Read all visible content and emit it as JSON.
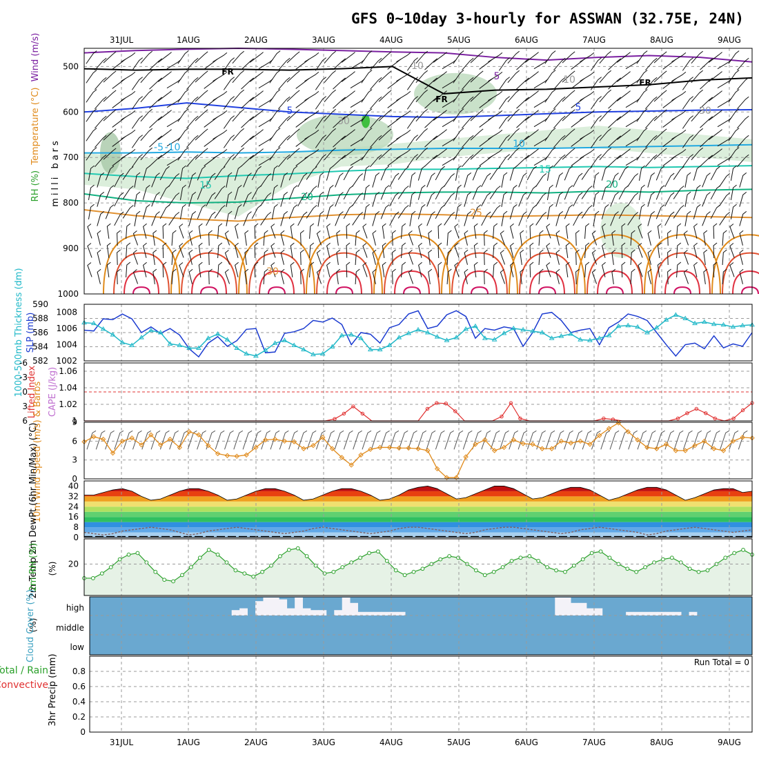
{
  "title": "GFS 0~10day 3-hourly for ASSWAN (32.75E, 24N)",
  "colors": {
    "wind": "#7a1fa0",
    "temperature": "#e03030",
    "rh": "#2aa02a",
    "rh_fill": "#cfe8cf",
    "thickness": "#20b8c8",
    "slp": "#1a3ad0",
    "lifted": "#e03030",
    "cape": "#c070d0",
    "wind10": "#e08a1a",
    "cloud": "#6aa8d0",
    "precip_total": "#2aa02a",
    "precip_conv": "#e03030"
  },
  "chart_data": [
    {
      "panel": "upper-air",
      "type": "contour",
      "dates": [
        "31JUL",
        "1AUG",
        "2AUG",
        "3AUG",
        "4AUG",
        "5AUG",
        "6AUG",
        "7AUG",
        "8AUG",
        "9AUG"
      ],
      "ylabel_parts": [
        "RH (%)",
        "Temperature (°C)",
        "Wind (m/s)"
      ],
      "ylabel2": "milli bars",
      "yticks": [
        "500",
        "600",
        "700",
        "800",
        "900",
        "1000"
      ],
      "ylim": [
        460,
        1000
      ],
      "freezing_label": "FR",
      "contour_labels": [
        "5",
        "5",
        "-5",
        "5",
        "-10",
        "10",
        "15",
        "15",
        "20",
        "20",
        "25",
        "30",
        "10",
        "30",
        "10",
        "30"
      ],
      "isotherms": [
        {
          "label": "-5",
          "p": [
            600,
            592,
            580,
            590,
            600,
            605,
            610,
            612,
            608,
            604,
            600,
            598,
            596,
            595
          ]
        },
        {
          "label": "-10",
          "p": [
            690,
            690,
            688,
            690,
            688,
            684,
            682,
            680,
            680,
            680,
            678,
            676,
            674,
            672
          ]
        },
        {
          "label": "15",
          "p": [
            735,
            742,
            746,
            740,
            736,
            730,
            726,
            726,
            724,
            722,
            720,
            722,
            720,
            718
          ]
        },
        {
          "label": "20",
          "p": [
            780,
            795,
            800,
            798,
            790,
            782,
            778,
            776,
            776,
            778,
            774,
            776,
            772,
            770
          ]
        },
        {
          "label": "25",
          "p": [
            815,
            828,
            835,
            840,
            832,
            826,
            824,
            826,
            830,
            828,
            826,
            828,
            830,
            832
          ]
        }
      ]
    },
    {
      "panel": "slp-thickness",
      "type": "line",
      "ylabel_left": "1000-500mb Thickness (dm)",
      "ylabel_right": "SLP (mb)",
      "yticks_left": [
        "590",
        "588",
        "586",
        "584",
        "582"
      ],
      "yticks_right": [
        "1008",
        "1006",
        "1004",
        "1002"
      ],
      "ylim_left": [
        582,
        590
      ],
      "ylim_right": [
        1002,
        1009
      ],
      "series": [
        {
          "name": "SLP (mb)",
          "axis": "right",
          "values": [
            1005.8,
            1005.7,
            1007.2,
            1007.1,
            1007.8,
            1007.2,
            1005.5,
            1006.2,
            1005.4,
            1006.0,
            1005.2,
            1003.5,
            1002.5,
            1004.2,
            1005.0,
            1003.8,
            1004.5,
            1005.9,
            1006.0,
            1003.0,
            1003.1,
            1005.4,
            1005.6,
            1006.0,
            1007.0,
            1006.8,
            1007.3,
            1006.5,
            1004.0,
            1005.5,
            1005.3,
            1004.2,
            1006.1,
            1006.5,
            1007.8,
            1008.2,
            1006.0,
            1006.3,
            1007.7,
            1008.2,
            1007.5,
            1004.8,
            1006.0,
            1005.8,
            1006.2,
            1006.0,
            1003.8,
            1005.5,
            1007.8,
            1008.0,
            1007.0,
            1005.5,
            1005.8,
            1006.0,
            1004.0,
            1006.1,
            1006.8,
            1007.8,
            1007.5,
            1007.0,
            1005.5,
            1004.0,
            1002.6,
            1004.0,
            1004.2,
            1003.5,
            1005.1,
            1003.6,
            1004.1,
            1003.8,
            1005.5
          ]
        },
        {
          "name": "Thickness (dm)",
          "axis": "left",
          "values": [
            587.4,
            587.3,
            586.5,
            585.7,
            584.6,
            584.2,
            585.3,
            586.3,
            586.0,
            584.4,
            584.2,
            583.8,
            583.8,
            585.2,
            585.8,
            585.0,
            583.8,
            583.0,
            582.7,
            583.5,
            584.5,
            584.9,
            584.2,
            583.6,
            582.9,
            583.0,
            584.0,
            585.6,
            585.7,
            585.2,
            583.6,
            583.6,
            584.2,
            585.3,
            585.9,
            586.4,
            586.0,
            585.4,
            584.9,
            585.3,
            586.5,
            586.9,
            585.2,
            585.0,
            585.9,
            586.6,
            586.4,
            586.2,
            586.0,
            585.2,
            585.5,
            585.8,
            585.0,
            584.9,
            585.2,
            585.6,
            586.9,
            587.0,
            586.8,
            586.0,
            586.7,
            587.8,
            588.5,
            588.0,
            587.3,
            587.5,
            587.2,
            587.1,
            586.8,
            587.0,
            587.1
          ]
        }
      ]
    },
    {
      "panel": "stability",
      "type": "line",
      "ylabel_left": "Lifted Index",
      "ylabel_right": "CAPE (J/kg)",
      "yticks_left": [
        "-6",
        "-3",
        "0",
        "3",
        "6"
      ],
      "yticks_right": [
        "1.06",
        "1.04",
        "1.02",
        "1"
      ],
      "ylim_left": [
        6,
        -6
      ],
      "ylim_right": [
        1.0,
        1.07
      ],
      "series": [
        {
          "name": "Lifted Index",
          "values": [
            6,
            6,
            6,
            6,
            6,
            6,
            6,
            6,
            6,
            6,
            6,
            6,
            6,
            6,
            6,
            6,
            6,
            6,
            6,
            6,
            6,
            6,
            6,
            6,
            6,
            6,
            6,
            5.6,
            4.5,
            3.0,
            4.5,
            6,
            6,
            6,
            6,
            6,
            6,
            3.5,
            2.3,
            2.4,
            4.0,
            6,
            6,
            6,
            6,
            5.1,
            2.3,
            5.5,
            6,
            6,
            6,
            6,
            6,
            6,
            6,
            6,
            5.5,
            5.7,
            6,
            6,
            6,
            6,
            6,
            6,
            5.5,
            4.4,
            3.5,
            4.4,
            5.5,
            6,
            5.5,
            3.8,
            2.3
          ]
        }
      ]
    },
    {
      "panel": "wind10m",
      "type": "line",
      "ylabel": "10m Wind Speed (m/s) & Barbs",
      "yticks": [
        "9",
        "6",
        "3",
        "0"
      ],
      "ylim": [
        0,
        9
      ],
      "series": [
        {
          "name": "Speed",
          "values": [
            5.9,
            6.7,
            6.3,
            4.1,
            6.0,
            6.5,
            5.4,
            7.0,
            5.4,
            6.3,
            5.0,
            7.5,
            7.0,
            5.3,
            4.0,
            3.7,
            3.6,
            3.8,
            5.0,
            6.2,
            6.3,
            6.0,
            5.9,
            4.8,
            5.3,
            6.6,
            4.8,
            3.4,
            2.2,
            3.8,
            4.7,
            5.0,
            5.0,
            4.9,
            4.9,
            4.8,
            4.5,
            1.6,
            0.2,
            0.2,
            3.5,
            5.5,
            6.2,
            4.5,
            5.0,
            6.2,
            5.6,
            5.5,
            4.8,
            4.8,
            6.0,
            5.7,
            6.0,
            5.5,
            6.9,
            8.0,
            8.9,
            7.5,
            6.2,
            5.0,
            4.8,
            5.5,
            4.5,
            4.5,
            5.3,
            6.0,
            4.8,
            4.5,
            6.0,
            6.6,
            6.5
          ]
        }
      ]
    },
    {
      "panel": "temp2m",
      "type": "area",
      "ylabel": "2m Temp 2m DewPt (6hr Min/Max) (°C)",
      "yticks": [
        "40",
        "32",
        "24",
        "16",
        "8",
        "0"
      ],
      "ylim": [
        0,
        44
      ],
      "series": [
        {
          "name": "2m Temp",
          "values": [
            33,
            33,
            35,
            37,
            38,
            36,
            32,
            29,
            30,
            33,
            36,
            38,
            38,
            36,
            33,
            29,
            30,
            33,
            36,
            38,
            38,
            36,
            33,
            29,
            30,
            33,
            36,
            38,
            38,
            36,
            33,
            29,
            30,
            33,
            37,
            39,
            40,
            38,
            34,
            30,
            31,
            34,
            37,
            40,
            40,
            38,
            34,
            30,
            31,
            34,
            37,
            39,
            39,
            37,
            33,
            29,
            31,
            34,
            37,
            39,
            39,
            37,
            33,
            29,
            31,
            34,
            37,
            38,
            38,
            35,
            36
          ]
        },
        {
          "name": "2m DewPt",
          "values": [
            4,
            3,
            2,
            3,
            5,
            6,
            7,
            8,
            7,
            6,
            4,
            2,
            3,
            5,
            6,
            7,
            8,
            7,
            6,
            5,
            4,
            3,
            4,
            5,
            7,
            8,
            7,
            6,
            5,
            4,
            3,
            4,
            5,
            7,
            8,
            8,
            7,
            6,
            5,
            4,
            3,
            4,
            6,
            7,
            8,
            8,
            7,
            6,
            5,
            4,
            3,
            4,
            6,
            7,
            8,
            7,
            6,
            5,
            4,
            2,
            3,
            5,
            6,
            7,
            8,
            7,
            6,
            5,
            4,
            5,
            6
          ]
        }
      ]
    },
    {
      "panel": "rh2m",
      "type": "line",
      "ylabel": "2m RH (%)",
      "yticks": [
        "20"
      ],
      "ylim": [
        0,
        36
      ],
      "series": [
        {
          "name": "2m RH",
          "values": [
            11,
            11,
            14,
            18,
            23,
            26,
            27,
            21,
            15,
            10,
            9,
            13,
            18,
            24,
            29,
            26,
            21,
            16,
            14,
            12,
            15,
            19,
            25,
            29,
            30,
            25,
            19,
            14,
            15,
            18,
            21,
            24,
            27,
            28,
            22,
            16,
            13,
            15,
            17,
            20,
            23,
            25,
            24,
            20,
            16,
            13,
            15,
            18,
            22,
            24,
            25,
            22,
            18,
            16,
            15,
            19,
            23,
            27,
            28,
            24,
            20,
            17,
            15,
            18,
            21,
            23,
            24,
            21,
            17,
            15,
            16,
            20,
            24,
            27,
            29,
            26
          ]
        }
      ]
    },
    {
      "panel": "cloud",
      "type": "bar",
      "ylabel": "Cloud Cover (%)",
      "levels": [
        "high",
        "middle",
        "low"
      ],
      "high_cover": [
        0,
        0,
        0,
        0,
        0,
        0,
        0,
        0,
        0,
        0,
        0,
        0,
        0,
        0,
        0,
        0,
        0,
        0,
        30,
        40,
        0,
        80,
        100,
        100,
        90,
        40,
        100,
        40,
        30,
        30,
        0,
        30,
        100,
        70,
        20,
        20,
        20,
        20,
        20,
        20,
        0,
        0,
        0,
        0,
        0,
        0,
        0,
        0,
        0,
        0,
        0,
        0,
        0,
        0,
        0,
        0,
        0,
        0,
        0,
        100,
        100,
        70,
        70,
        40,
        40,
        0,
        0,
        0,
        20,
        20,
        20,
        20,
        20,
        20,
        20,
        0,
        20,
        0,
        0,
        0,
        0,
        0,
        0,
        0
      ]
    },
    {
      "panel": "precip",
      "type": "bar",
      "ylabel_left": "Total / Rain",
      "ylabel_left2": "Convective",
      "ylabel": "3hr Precip (mm)",
      "yticks": [
        "0.8",
        "0.6",
        "0.4",
        "0.2",
        "0"
      ],
      "ylim": [
        0,
        1
      ],
      "run_total": "Run Total = 0",
      "values": []
    }
  ]
}
